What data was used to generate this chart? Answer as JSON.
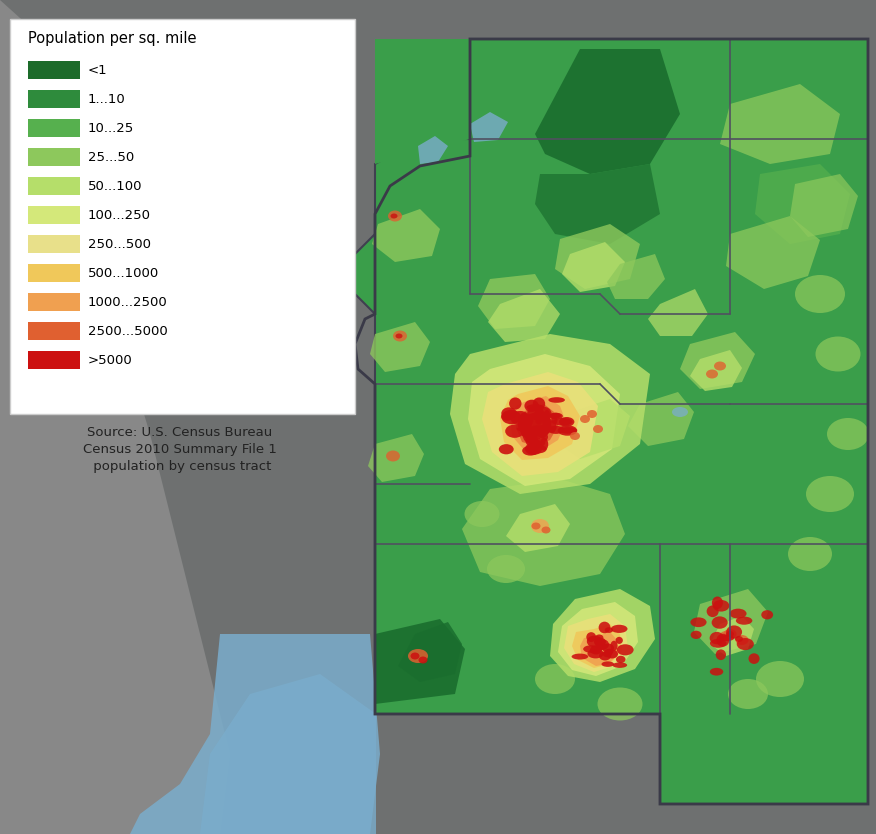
{
  "background_color": "#6e7070",
  "legend_title": "Population per sq. mile",
  "legend_labels": [
    "<1",
    "1...10",
    "10...25",
    "25...50",
    "50...100",
    "100...250",
    "250...500",
    "500...1000",
    "1000...2500",
    "2500...5000",
    ">5000"
  ],
  "legend_colors": [
    "#1c6b2a",
    "#2e8b3c",
    "#56b04e",
    "#8dc85c",
    "#b5de6a",
    "#d4e87a",
    "#e8e08a",
    "#f0c85a",
    "#f0a050",
    "#e06030",
    "#cc1010"
  ],
  "source_text": "Source: U.S. Census Bureau\nCensus 2010 Summary File 1\n population by census tract",
  "water_color": "#7aadcc",
  "baja_color": "#808080",
  "figsize": [
    8.76,
    8.34
  ],
  "dpi": 100,
  "base_green": "#3a9e4a",
  "dark_green": "#1a6e2e",
  "medium_green": "#56b04e",
  "light_green1": "#8dc85c",
  "light_green2": "#b5de6a",
  "county_color": "#505060"
}
